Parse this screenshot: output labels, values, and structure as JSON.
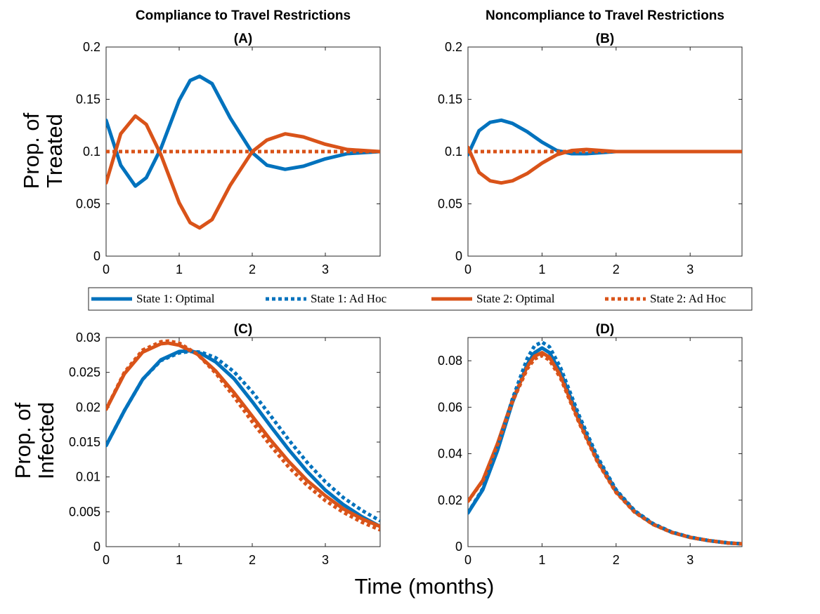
{
  "figure": {
    "y_label_top_line1": "Prop. of",
    "y_label_top_line2": "Treated",
    "y_label_bottom_line1": "Prop. of",
    "y_label_bottom_line2": "Infected",
    "x_label": "Time (months)"
  },
  "legend": {
    "placement": "between-rows",
    "entries": [
      {
        "label": "State 1:  Optimal",
        "color": "#0072BD",
        "dash": "solid"
      },
      {
        "label": "State 1:  Ad Hoc",
        "color": "#0072BD",
        "dash": "dotted"
      },
      {
        "label": "State 2:  Optimal",
        "color": "#D95319",
        "dash": "solid"
      },
      {
        "label": "State 2:  Ad Hoc",
        "color": "#D95319",
        "dash": "dotted"
      }
    ]
  },
  "colors": {
    "state1": "#0072BD",
    "state2": "#D95319"
  },
  "chart_data": [
    {
      "type": "line",
      "title": "Compliance to Travel Restrictions",
      "subtitle": "(A)",
      "xlim": [
        0,
        3.75
      ],
      "ylim": [
        0,
        0.2
      ],
      "xticks": [
        "0",
        "1",
        "2",
        "3"
      ],
      "yticks": [
        "0",
        "0.05",
        "0.1",
        "0.15",
        "0.2"
      ],
      "grid": false,
      "series": [
        {
          "name": "State 1:  Optimal",
          "color": "#0072BD",
          "dash": "solid",
          "x": [
            0,
            0.2,
            0.4,
            0.55,
            0.75,
            1.0,
            1.15,
            1.28,
            1.45,
            1.7,
            2.0,
            2.2,
            2.45,
            2.7,
            3.0,
            3.3,
            3.75
          ],
          "y": [
            0.13,
            0.087,
            0.067,
            0.075,
            0.103,
            0.149,
            0.168,
            0.172,
            0.165,
            0.132,
            0.099,
            0.087,
            0.083,
            0.086,
            0.093,
            0.098,
            0.1
          ]
        },
        {
          "name": "State 1:  Ad Hoc",
          "color": "#0072BD",
          "dash": "dotted",
          "x": [
            0,
            3.75
          ],
          "y": [
            0.1,
            0.1
          ]
        },
        {
          "name": "State 2:  Optimal",
          "color": "#D95319",
          "dash": "solid",
          "x": [
            0,
            0.2,
            0.4,
            0.55,
            0.75,
            1.0,
            1.15,
            1.28,
            1.45,
            1.7,
            2.0,
            2.2,
            2.45,
            2.7,
            3.0,
            3.3,
            3.75
          ],
          "y": [
            0.07,
            0.117,
            0.134,
            0.126,
            0.097,
            0.051,
            0.032,
            0.027,
            0.035,
            0.068,
            0.1,
            0.111,
            0.117,
            0.114,
            0.107,
            0.102,
            0.1
          ]
        },
        {
          "name": "State 2:  Ad Hoc",
          "color": "#D95319",
          "dash": "dotted",
          "x": [
            0,
            3.75
          ],
          "y": [
            0.1,
            0.1
          ]
        }
      ]
    },
    {
      "type": "line",
      "title": "Noncompliance to Travel Restrictions",
      "subtitle": "(B)",
      "xlim": [
        0,
        3.7
      ],
      "ylim": [
        0,
        0.2
      ],
      "xticks": [
        "0",
        "1",
        "2",
        "3"
      ],
      "yticks": [
        "0",
        "0.05",
        "0.1",
        "0.15",
        "0.2"
      ],
      "grid": false,
      "series": [
        {
          "name": "State 1:  Optimal",
          "color": "#0072BD",
          "dash": "solid",
          "x": [
            0,
            0.15,
            0.3,
            0.45,
            0.6,
            0.8,
            1.0,
            1.2,
            1.4,
            1.6,
            1.8,
            2.0,
            2.5,
            3.0,
            3.7
          ],
          "y": [
            0.097,
            0.12,
            0.128,
            0.13,
            0.127,
            0.119,
            0.109,
            0.101,
            0.098,
            0.098,
            0.099,
            0.1,
            0.1,
            0.1,
            0.1
          ]
        },
        {
          "name": "State 1:  Ad Hoc",
          "color": "#0072BD",
          "dash": "dotted",
          "x": [
            0,
            3.7
          ],
          "y": [
            0.1,
            0.1
          ]
        },
        {
          "name": "State 2:  Optimal",
          "color": "#D95319",
          "dash": "solid",
          "x": [
            0,
            0.15,
            0.3,
            0.45,
            0.6,
            0.8,
            1.0,
            1.2,
            1.4,
            1.6,
            1.8,
            2.0,
            2.5,
            3.0,
            3.7
          ],
          "y": [
            0.104,
            0.08,
            0.072,
            0.07,
            0.072,
            0.079,
            0.089,
            0.097,
            0.101,
            0.102,
            0.101,
            0.1,
            0.1,
            0.1,
            0.1
          ]
        },
        {
          "name": "State 2:  Ad Hoc",
          "color": "#D95319",
          "dash": "dotted",
          "x": [
            0,
            3.7
          ],
          "y": [
            0.1,
            0.1
          ]
        }
      ]
    },
    {
      "type": "line",
      "title": "",
      "subtitle": "(C)",
      "xlim": [
        0,
        3.75
      ],
      "ylim": [
        0,
        0.03
      ],
      "xticks": [
        "0",
        "1",
        "2",
        "3"
      ],
      "yticks": [
        "0",
        "0.005",
        "0.01",
        "0.015",
        "0.02",
        "0.025",
        "0.03"
      ],
      "grid": false,
      "series": [
        {
          "name": "State 1:  Optimal",
          "color": "#0072BD",
          "dash": "solid",
          "x": [
            0,
            0.25,
            0.5,
            0.75,
            1.0,
            1.15,
            1.3,
            1.5,
            1.75,
            2.0,
            2.25,
            2.5,
            2.75,
            3.0,
            3.25,
            3.5,
            3.75
          ],
          "y": [
            0.0145,
            0.0195,
            0.024,
            0.0268,
            0.028,
            0.0281,
            0.0277,
            0.0265,
            0.0241,
            0.0208,
            0.0173,
            0.0139,
            0.0108,
            0.0081,
            0.006,
            0.0043,
            0.0029
          ]
        },
        {
          "name": "State 1:  Ad Hoc",
          "color": "#0072BD",
          "dash": "dotted",
          "x": [
            0,
            0.25,
            0.5,
            0.75,
            1.0,
            1.15,
            1.3,
            1.5,
            1.75,
            2.0,
            2.25,
            2.5,
            2.75,
            3.0,
            3.25,
            3.5,
            3.75
          ],
          "y": [
            0.0145,
            0.0195,
            0.024,
            0.0267,
            0.0278,
            0.028,
            0.0279,
            0.0271,
            0.0251,
            0.0222,
            0.0188,
            0.0153,
            0.0121,
            0.0093,
            0.007,
            0.0052,
            0.0037
          ]
        },
        {
          "name": "State 2:  Optimal",
          "color": "#D95319",
          "dash": "solid",
          "x": [
            0,
            0.25,
            0.5,
            0.75,
            0.85,
            1.0,
            1.25,
            1.5,
            1.75,
            2.0,
            2.25,
            2.5,
            2.75,
            3.0,
            3.25,
            3.5,
            3.75
          ],
          "y": [
            0.0197,
            0.0248,
            0.0279,
            0.0291,
            0.0292,
            0.0289,
            0.0276,
            0.0252,
            0.0221,
            0.0187,
            0.0153,
            0.0122,
            0.0095,
            0.0073,
            0.0054,
            0.004,
            0.0029
          ]
        },
        {
          "name": "State 2:  Ad Hoc",
          "color": "#D95319",
          "dash": "dotted",
          "x": [
            0,
            0.25,
            0.5,
            0.75,
            0.85,
            1.0,
            1.25,
            1.5,
            1.75,
            2.0,
            2.25,
            2.5,
            2.75,
            3.0,
            3.25,
            3.5,
            3.75
          ],
          "y": [
            0.0197,
            0.025,
            0.0282,
            0.0294,
            0.0295,
            0.0292,
            0.0276,
            0.0249,
            0.0215,
            0.0179,
            0.0145,
            0.0114,
            0.0088,
            0.0066,
            0.0049,
            0.0035,
            0.0024
          ]
        }
      ]
    },
    {
      "type": "line",
      "title": "",
      "subtitle": "(D)",
      "xlim": [
        0,
        3.7
      ],
      "ylim": [
        0,
        0.09
      ],
      "xticks": [
        "0",
        "1",
        "2",
        "3"
      ],
      "yticks": [
        "0",
        "0.02",
        "0.04",
        "0.06",
        "0.08"
      ],
      "grid": false,
      "series": [
        {
          "name": "State 1:  Optimal",
          "color": "#0072BD",
          "dash": "solid",
          "x": [
            0,
            0.2,
            0.4,
            0.6,
            0.8,
            0.9,
            1.0,
            1.1,
            1.25,
            1.5,
            1.75,
            2.0,
            2.25,
            2.5,
            2.75,
            3.0,
            3.25,
            3.5,
            3.7
          ],
          "y": [
            0.0145,
            0.0245,
            0.0415,
            0.062,
            0.0785,
            0.0835,
            0.0855,
            0.0835,
            0.075,
            0.055,
            0.0375,
            0.024,
            0.0152,
            0.0097,
            0.0062,
            0.004,
            0.0026,
            0.0016,
            0.0012
          ]
        },
        {
          "name": "State 1:  Ad Hoc",
          "color": "#0072BD",
          "dash": "dotted",
          "x": [
            0,
            0.2,
            0.4,
            0.6,
            0.8,
            0.9,
            1.0,
            1.1,
            1.25,
            1.5,
            1.75,
            2.0,
            2.25,
            2.5,
            2.75,
            3.0,
            3.25,
            3.5,
            3.7
          ],
          "y": [
            0.0145,
            0.025,
            0.0425,
            0.0635,
            0.081,
            0.0865,
            0.088,
            0.086,
            0.077,
            0.0565,
            0.0385,
            0.0245,
            0.0155,
            0.0099,
            0.0063,
            0.0041,
            0.0026,
            0.0017,
            0.0012
          ]
        },
        {
          "name": "State 2:  Optimal",
          "color": "#D95319",
          "dash": "solid",
          "x": [
            0,
            0.2,
            0.4,
            0.6,
            0.8,
            0.9,
            1.0,
            1.1,
            1.25,
            1.5,
            1.75,
            2.0,
            2.25,
            2.5,
            2.75,
            3.0,
            3.25,
            3.5,
            3.7
          ],
          "y": [
            0.0195,
            0.0285,
            0.0445,
            0.063,
            0.0775,
            0.082,
            0.0835,
            0.0815,
            0.0735,
            0.054,
            0.0368,
            0.0236,
            0.015,
            0.0096,
            0.0062,
            0.004,
            0.0026,
            0.0016,
            0.0012
          ]
        },
        {
          "name": "State 2:  Ad Hoc",
          "color": "#D95319",
          "dash": "dotted",
          "x": [
            0,
            0.2,
            0.4,
            0.6,
            0.8,
            0.9,
            1.0,
            1.1,
            1.25,
            1.5,
            1.75,
            2.0,
            2.25,
            2.5,
            2.75,
            3.0,
            3.25,
            3.5,
            3.7
          ],
          "y": [
            0.0195,
            0.0283,
            0.044,
            0.0622,
            0.0765,
            0.0808,
            0.0822,
            0.0803,
            0.0725,
            0.0533,
            0.0363,
            0.0233,
            0.0148,
            0.0095,
            0.0061,
            0.004,
            0.0026,
            0.0016,
            0.0012
          ]
        }
      ]
    }
  ]
}
